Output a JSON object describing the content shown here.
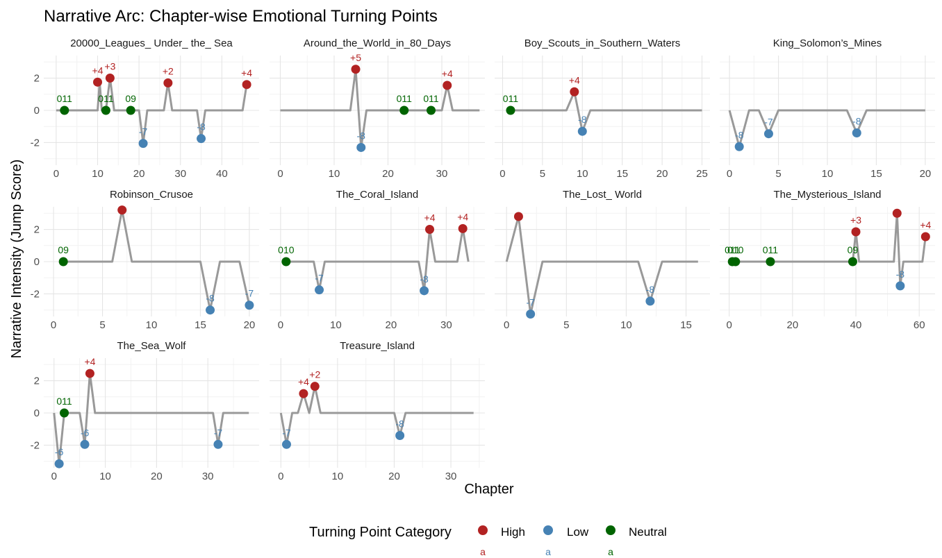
{
  "chart_data": {
    "type": "line",
    "title": "Narrative Arc: Chapter-wise Emotional Turning Points",
    "xlabel": "Chapter",
    "ylabel": "Narrative Intensity (Jump Score)",
    "ylim": [
      -3.4,
      3.4
    ],
    "yticks": [
      -2,
      0,
      2
    ],
    "ytick_labels": [
      "-2",
      "0",
      "2"
    ],
    "grid": true,
    "legend": {
      "title": "Turning Point Category",
      "position": "bottom",
      "items": [
        {
          "category": "High",
          "label": "High",
          "color": "#B22222",
          "key_glyph": "a"
        },
        {
          "category": "Low",
          "label": "Low",
          "color": "#4682B4",
          "key_glyph": "a"
        },
        {
          "category": "Neutral",
          "label": "Neutral",
          "color": "#006400",
          "key_glyph": "a"
        }
      ]
    },
    "colors": {
      "line": "#999999",
      "High": "#B22222",
      "Low": "#4682B4",
      "Neutral": "#006400"
    },
    "panels": [
      {
        "title": "20000_Leagues_ Under_ the_ Sea",
        "xlim": [
          -3,
          49
        ],
        "xticks": [
          0,
          10,
          20,
          30,
          40
        ],
        "line": [
          [
            0,
            0
          ],
          [
            10,
            0
          ],
          [
            10.5,
            1.75
          ],
          [
            11,
            0
          ],
          [
            12,
            0
          ],
          [
            13,
            2
          ],
          [
            14,
            0
          ],
          [
            18,
            0
          ],
          [
            20,
            0
          ],
          [
            21,
            -2.05
          ],
          [
            22,
            0
          ],
          [
            26,
            0
          ],
          [
            27,
            1.7
          ],
          [
            28,
            0
          ],
          [
            34,
            0
          ],
          [
            35,
            -1.75
          ],
          [
            36,
            0
          ],
          [
            45,
            0
          ],
          [
            46,
            1.6
          ]
        ],
        "points": [
          {
            "x": 2,
            "y": 0,
            "category": "Neutral",
            "label": "011"
          },
          {
            "x": 10,
            "y": 1.75,
            "category": "High",
            "label": "+4"
          },
          {
            "x": 12,
            "y": 0,
            "category": "Neutral",
            "label": "011"
          },
          {
            "x": 13,
            "y": 2,
            "category": "High",
            "label": "+3"
          },
          {
            "x": 18,
            "y": 0,
            "category": "Neutral",
            "label": "09"
          },
          {
            "x": 21,
            "y": -2.05,
            "category": "Low",
            "label": "-7"
          },
          {
            "x": 27,
            "y": 1.7,
            "category": "High",
            "label": "+2"
          },
          {
            "x": 35,
            "y": -1.75,
            "category": "Low",
            "label": "-8"
          },
          {
            "x": 46,
            "y": 1.6,
            "category": "High",
            "label": "+4"
          }
        ]
      },
      {
        "title": "Around_the_World_in_80_Days",
        "xlim": [
          -2,
          38
        ],
        "xticks": [
          0,
          10,
          20,
          30
        ],
        "line": [
          [
            0,
            0
          ],
          [
            13,
            0
          ],
          [
            14,
            2.55
          ],
          [
            15,
            -2.3
          ],
          [
            16,
            0
          ],
          [
            28,
            0
          ],
          [
            30,
            0
          ],
          [
            31,
            1.55
          ],
          [
            32,
            0
          ],
          [
            37,
            0
          ]
        ],
        "points": [
          {
            "x": 14,
            "y": 2.55,
            "category": "High",
            "label": "+5"
          },
          {
            "x": 15,
            "y": -2.3,
            "category": "Low",
            "label": "-8"
          },
          {
            "x": 23,
            "y": 0,
            "category": "Neutral",
            "label": "011"
          },
          {
            "x": 28,
            "y": 0,
            "category": "Neutral",
            "label": "011"
          },
          {
            "x": 31,
            "y": 1.55,
            "category": "High",
            "label": "+4"
          }
        ]
      },
      {
        "title": "Boy_Scouts_in_Southern_Waters",
        "xlim": [
          -1,
          26
        ],
        "xticks": [
          0,
          5,
          10,
          15,
          20,
          25
        ],
        "line": [
          [
            1,
            0
          ],
          [
            8,
            0
          ],
          [
            9,
            1.15
          ],
          [
            10,
            -1.3
          ],
          [
            11,
            0
          ],
          [
            25,
            0
          ]
        ],
        "points": [
          {
            "x": 1,
            "y": 0,
            "category": "Neutral",
            "label": "011"
          },
          {
            "x": 9,
            "y": 1.15,
            "category": "High",
            "label": "+4"
          },
          {
            "x": 10,
            "y": -1.3,
            "category": "Low",
            "label": "-8"
          }
        ]
      },
      {
        "title": "King_Solomon’s_Mines",
        "xlim": [
          -1,
          21
        ],
        "xticks": [
          0,
          5,
          10,
          15,
          20
        ],
        "line": [
          [
            0,
            0
          ],
          [
            1,
            -2.25
          ],
          [
            2,
            0
          ],
          [
            3,
            0
          ],
          [
            4,
            -1.45
          ],
          [
            5,
            0
          ],
          [
            12,
            0
          ],
          [
            13,
            -1.4
          ],
          [
            14,
            0
          ],
          [
            20,
            0
          ]
        ],
        "points": [
          {
            "x": 1,
            "y": -2.25,
            "category": "Low",
            "label": "-8"
          },
          {
            "x": 4,
            "y": -1.45,
            "category": "Low",
            "label": "-7"
          },
          {
            "x": 13,
            "y": -1.4,
            "category": "Low",
            "label": "-8"
          }
        ]
      },
      {
        "title": "Robinson_Crusoe",
        "xlim": [
          -1,
          21
        ],
        "xticks": [
          0,
          5,
          10,
          15,
          20
        ],
        "line": [
          [
            1,
            0
          ],
          [
            6,
            0
          ],
          [
            7,
            3.2
          ],
          [
            8,
            0
          ],
          [
            15,
            0
          ],
          [
            16,
            -3
          ],
          [
            17,
            0
          ],
          [
            19,
            0
          ],
          [
            20,
            -2.7
          ]
        ],
        "points": [
          {
            "x": 1,
            "y": 0,
            "category": "Neutral",
            "label": "09"
          },
          {
            "x": 7,
            "y": 3.2,
            "category": "High",
            "label": ""
          },
          {
            "x": 16,
            "y": -3,
            "category": "Low",
            "label": "-8"
          },
          {
            "x": 20,
            "y": -2.7,
            "category": "Low",
            "label": "-7"
          }
        ]
      },
      {
        "title": "The_Coral_Island",
        "xlim": [
          -2,
          37
        ],
        "xticks": [
          0,
          10,
          20,
          30
        ],
        "line": [
          [
            1,
            0
          ],
          [
            6,
            0
          ],
          [
            7,
            -1.75
          ],
          [
            8,
            0
          ],
          [
            25,
            0
          ],
          [
            26,
            -1.8
          ],
          [
            27,
            2
          ],
          [
            28,
            0
          ],
          [
            32,
            0
          ],
          [
            33,
            2.05
          ],
          [
            34,
            0
          ]
        ],
        "points": [
          {
            "x": 1,
            "y": 0,
            "category": "Neutral",
            "label": "010"
          },
          {
            "x": 7,
            "y": -1.75,
            "category": "Low",
            "label": "-7"
          },
          {
            "x": 26,
            "y": -1.8,
            "category": "Low",
            "label": "-8"
          },
          {
            "x": 27,
            "y": 2,
            "category": "High",
            "label": "+4"
          },
          {
            "x": 33,
            "y": 2.05,
            "category": "High",
            "label": "+4"
          }
        ]
      },
      {
        "title": "The_Lost_ World",
        "xlim": [
          -1,
          17
        ],
        "xticks": [
          0,
          5,
          10,
          15
        ],
        "line": [
          [
            0,
            0
          ],
          [
            1,
            2.8
          ],
          [
            2,
            -3.25
          ],
          [
            3,
            0
          ],
          [
            11,
            0
          ],
          [
            12,
            -2.45
          ],
          [
            13,
            0
          ],
          [
            16,
            0
          ]
        ],
        "points": [
          {
            "x": 1,
            "y": 2.8,
            "category": "High",
            "label": ""
          },
          {
            "x": 2,
            "y": -3.25,
            "category": "Low",
            "label": "-7"
          },
          {
            "x": 12,
            "y": -2.45,
            "category": "Low",
            "label": "-8"
          }
        ]
      },
      {
        "title": "The_Mysterious_Island",
        "xlim": [
          -3,
          65
        ],
        "xticks": [
          0,
          20,
          40,
          60
        ],
        "line": [
          [
            1,
            0
          ],
          [
            39,
            0
          ],
          [
            40,
            1.85
          ],
          [
            41,
            0
          ],
          [
            52,
            0
          ],
          [
            53,
            3
          ],
          [
            54,
            -1.5
          ],
          [
            55,
            0
          ],
          [
            61,
            0
          ],
          [
            62,
            1.55
          ]
        ],
        "points": [
          {
            "x": 1,
            "y": 0,
            "category": "Neutral",
            "label": "011"
          },
          {
            "x": 2,
            "y": 0,
            "category": "Neutral",
            "label": "010"
          },
          {
            "x": 13,
            "y": 0,
            "category": "Neutral",
            "label": "011"
          },
          {
            "x": 39,
            "y": 0,
            "category": "Neutral",
            "label": "09"
          },
          {
            "x": 40,
            "y": 1.85,
            "category": "High",
            "label": "+3"
          },
          {
            "x": 53,
            "y": 3,
            "category": "High",
            "label": ""
          },
          {
            "x": 54,
            "y": -1.5,
            "category": "Low",
            "label": "-8"
          },
          {
            "x": 62,
            "y": 1.55,
            "category": "High",
            "label": "+4"
          }
        ]
      },
      {
        "title": "The_Sea_Wolf",
        "xlim": [
          -2,
          40
        ],
        "xticks": [
          0,
          10,
          20,
          30
        ],
        "line": [
          [
            0,
            0
          ],
          [
            1,
            -3.15
          ],
          [
            2,
            0
          ],
          [
            5,
            0
          ],
          [
            6,
            -1.95
          ],
          [
            7,
            2.45
          ],
          [
            8,
            0
          ],
          [
            31,
            0
          ],
          [
            32,
            -1.95
          ],
          [
            33,
            0
          ],
          [
            38,
            0
          ]
        ],
        "points": [
          {
            "x": 1,
            "y": -3.15,
            "category": "Low",
            "label": "-6"
          },
          {
            "x": 2,
            "y": 0,
            "category": "Neutral",
            "label": "011"
          },
          {
            "x": 6,
            "y": -1.95,
            "category": "Low",
            "label": "-6"
          },
          {
            "x": 7,
            "y": 2.45,
            "category": "High",
            "label": "+4"
          },
          {
            "x": 32,
            "y": -1.95,
            "category": "Low",
            "label": "-7"
          }
        ]
      },
      {
        "title": "Treasure_Island",
        "xlim": [
          -2,
          36
        ],
        "xticks": [
          0,
          10,
          20,
          30
        ],
        "line": [
          [
            0,
            0
          ],
          [
            1,
            -1.95
          ],
          [
            2,
            0
          ],
          [
            3,
            0
          ],
          [
            4,
            1.2
          ],
          [
            5,
            0
          ],
          [
            6,
            1.65
          ],
          [
            7,
            0
          ],
          [
            20,
            0
          ],
          [
            21,
            -1.4
          ],
          [
            22,
            0
          ],
          [
            34,
            0
          ]
        ],
        "points": [
          {
            "x": 1,
            "y": -1.95,
            "category": "Low",
            "label": "-7"
          },
          {
            "x": 4,
            "y": 1.2,
            "category": "High",
            "label": "+4"
          },
          {
            "x": 6,
            "y": 1.65,
            "category": "High",
            "label": "+2"
          },
          {
            "x": 21,
            "y": -1.4,
            "category": "Low",
            "label": "-8"
          }
        ]
      }
    ]
  }
}
